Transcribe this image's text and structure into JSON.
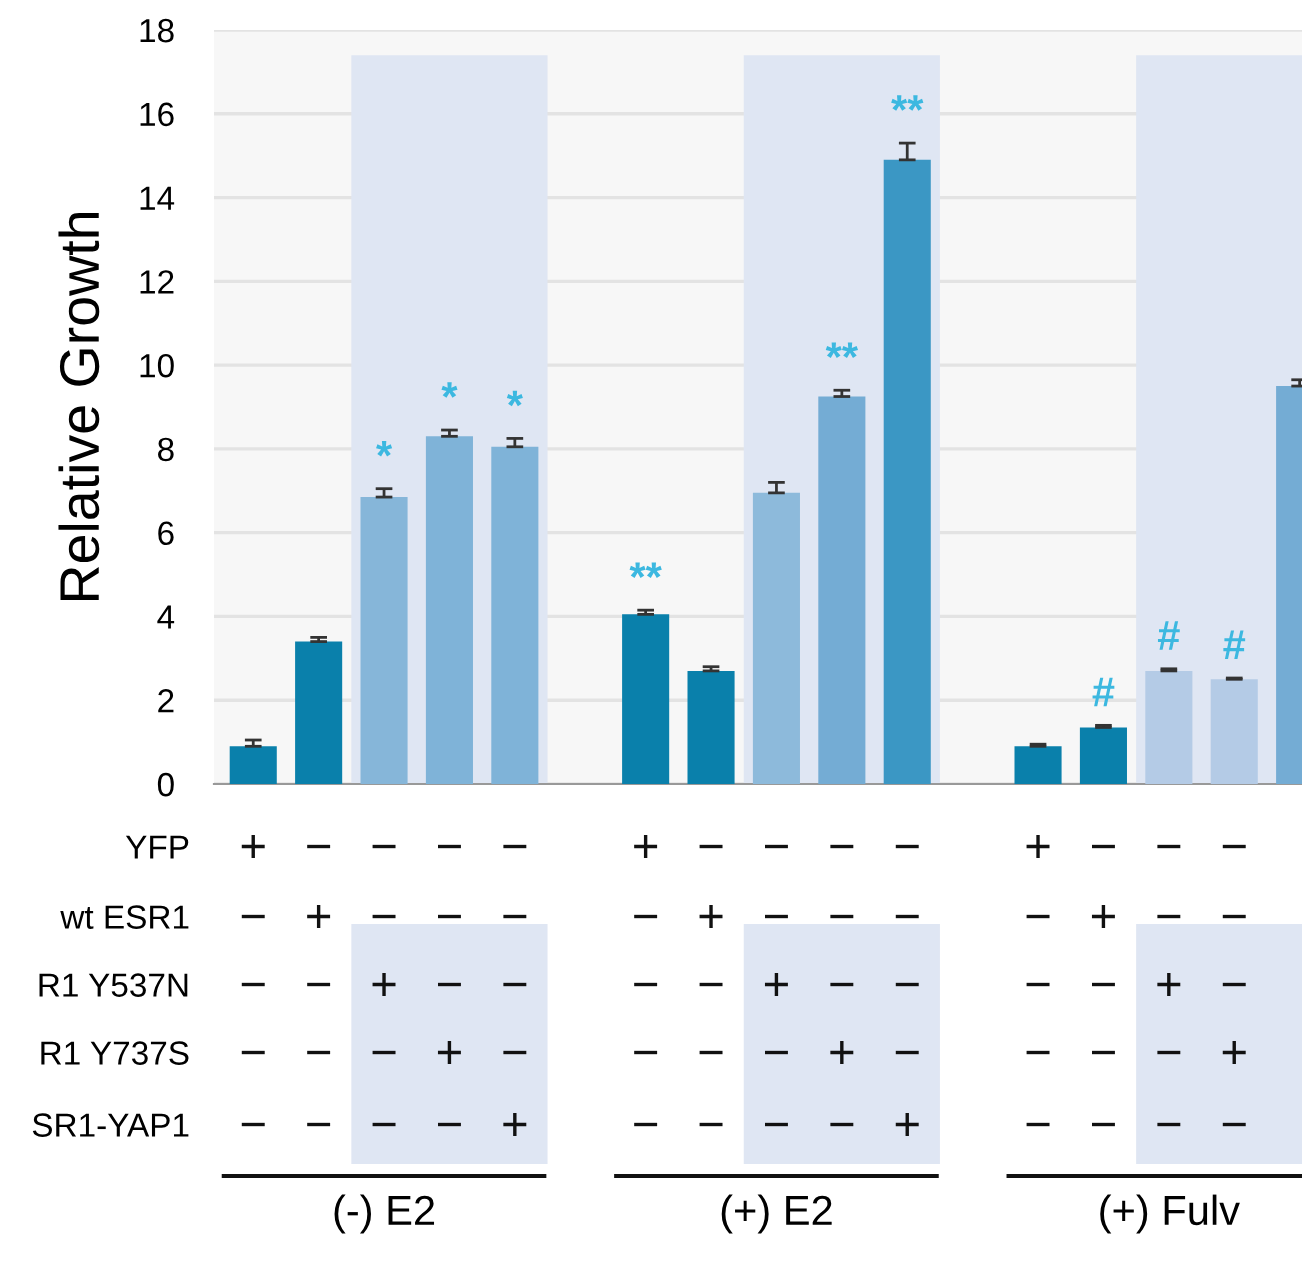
{
  "chart_data": {
    "type": "bar",
    "ylabel": "Relative Growth",
    "categories": [
      null,
      null,
      null,
      null,
      null,
      null,
      null,
      null,
      null,
      null,
      null,
      null,
      null,
      null,
      null,
      null,
      null
    ],
    "values": [
      0.9,
      3.4,
      6.85,
      8.3,
      8.05,
      null,
      4.05,
      2.7,
      6.95,
      9.25,
      14.9,
      null,
      0.9,
      1.35,
      2.7,
      2.5,
      9.5
    ],
    "errors": [
      0.15,
      0.1,
      0.2,
      0.15,
      0.2,
      null,
      0.1,
      0.1,
      0.25,
      0.15,
      0.4,
      null,
      0.05,
      0.05,
      0.05,
      0.03,
      0.15
    ],
    "colors": [
      "#0a80ab",
      "#0a80ab",
      "#86b6d9",
      "#7fb3d8",
      "#7fb3d8",
      "#ffffff",
      "#0a80ab",
      "#0a80ab",
      "#8dbadb",
      "#74acd4",
      "#3b97c4",
      "#ffffff",
      "#0a80ab",
      "#0a80ab",
      "#b4cbe6",
      "#b4cbe6",
      "#74acd4"
    ],
    "value_labels": [
      null,
      null,
      "*",
      "*",
      "*",
      null,
      "**",
      null,
      null,
      "**",
      "**",
      null,
      null,
      "#",
      "#",
      "#",
      null
    ],
    "ylim": [
      0,
      18
    ],
    "yticks": [
      0,
      2,
      4,
      6,
      8,
      10,
      12,
      14,
      16,
      18
    ],
    "grid": "y",
    "annotations": [
      "YFP",
      "+ − − − − + − − − − + − − −",
      "wt ESR1",
      "− + − − − − + − − − − + − −",
      "R1 Y537N",
      "− − + − − − − + − − − − + −",
      "R1 Y737S",
      "− − − + − − − − + − − − − +",
      "SR1-YAP1",
      "− − − − + − − − − + − − − −",
      "(-) E2",
      "(+) E2",
      "(+) Fulv"
    ]
  }
}
